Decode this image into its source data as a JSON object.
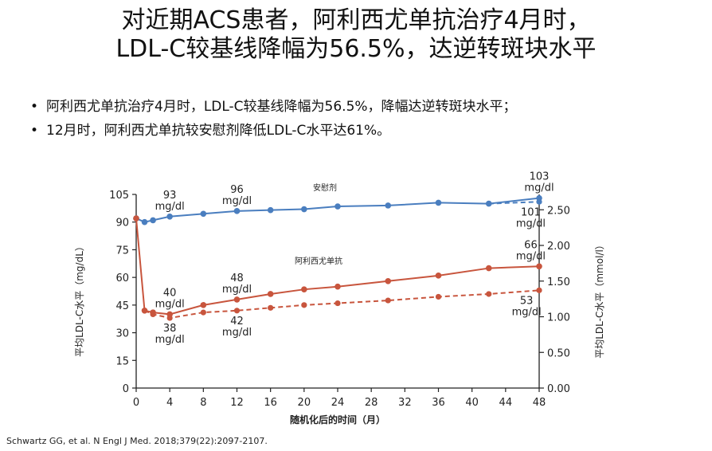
{
  "title_line1": "对近期ACS患者，阿利西尤单抗治疗4月时，",
  "title_line2": "LDL-C较基线降幅为56.5%，达逆转斑块水平",
  "bullets": [
    "阿利西尤单抗治疗4月时，LDL-C较基线降幅为56.5%，降幅达逆转斑块水平；",
    "12月时，阿利西尤单抗较安慰剂降低LDL-C水平达61%。"
  ],
  "citation": "Schwartz GG, et al. N Engl J Med. 2018;379(22):2097-2107.",
  "chart_data": {
    "type": "line",
    "xlabel": "随机化后的时间（月）",
    "ylabel": "平均LDL-C水平（mg/dL）",
    "ylabel_right": "平均LDL-C水平（mmol/l）",
    "x_ticks": [
      0,
      4,
      8,
      12,
      16,
      20,
      24,
      28,
      32,
      36,
      40,
      44,
      48
    ],
    "y_ticks": [
      0,
      15,
      30,
      45,
      60,
      75,
      90,
      105
    ],
    "y_right_ticks": [
      "0.00",
      "0.50",
      "1.00",
      "1.50",
      "2.00",
      "2.50"
    ],
    "ylim": [
      0,
      105
    ],
    "xlim": [
      0,
      48
    ],
    "colors": {
      "placebo": "#4a7ebf",
      "alirocumab": "#c8553d"
    },
    "series_labels": {
      "placebo": "安慰剂",
      "alirocumab": "阿利西尤单抗"
    },
    "series": [
      {
        "name": "安慰剂",
        "key": "placebo",
        "style": "solid",
        "x": [
          0,
          1,
          2,
          4,
          8,
          12,
          16,
          20,
          24,
          30,
          36,
          42,
          48
        ],
        "y": [
          92,
          90,
          91,
          93,
          94.5,
          96,
          96.5,
          97,
          98.5,
          99,
          100.5,
          100,
          103
        ]
      },
      {
        "name": "安慰剂",
        "key": "placebo",
        "style": "dashed",
        "x": [
          42,
          48
        ],
        "y": [
          100,
          101
        ]
      },
      {
        "name": "阿利西尤单抗",
        "key": "alirocumab",
        "style": "solid",
        "x": [
          0,
          1,
          2,
          4,
          8,
          12,
          16,
          20,
          24,
          30,
          36,
          42,
          48
        ],
        "y": [
          92,
          42,
          41,
          40,
          45,
          48,
          51,
          53.5,
          55,
          58,
          61,
          65,
          66
        ]
      },
      {
        "name": "阿利西尤单抗",
        "key": "alirocumab",
        "style": "dashed",
        "x": [
          1,
          2,
          4,
          8,
          12,
          16,
          20,
          24,
          30,
          36,
          42,
          48
        ],
        "y": [
          42,
          40,
          38,
          41,
          42,
          43.5,
          45,
          46,
          47.5,
          49.5,
          51,
          53
        ]
      }
    ],
    "annotations": [
      {
        "text": "93",
        "text2": "mg/dl",
        "x": 4,
        "y": 93,
        "pos": "above"
      },
      {
        "text": "96",
        "text2": "mg/dl",
        "x": 12,
        "y": 96,
        "pos": "above"
      },
      {
        "text": "103",
        "text2": "mg/dl",
        "x": 48,
        "y": 103,
        "pos": "above"
      },
      {
        "text": "101",
        "text2": "mg/dl",
        "x": 47,
        "y": 101,
        "pos": "below"
      },
      {
        "text": "40",
        "text2": "mg/dl",
        "x": 4,
        "y": 40,
        "pos": "above"
      },
      {
        "text": "48",
        "text2": "mg/dl",
        "x": 12,
        "y": 48,
        "pos": "above"
      },
      {
        "text": "66",
        "text2": "mg/dl",
        "x": 47,
        "y": 66,
        "pos": "above"
      },
      {
        "text": "38",
        "text2": "mg/dl",
        "x": 4,
        "y": 38,
        "pos": "below"
      },
      {
        "text": "42",
        "text2": "mg/dl",
        "x": 12,
        "y": 42,
        "pos": "below"
      },
      {
        "text": "53",
        "text2": "mg/dl",
        "x": 46.5,
        "y": 53,
        "pos": "below"
      }
    ]
  }
}
